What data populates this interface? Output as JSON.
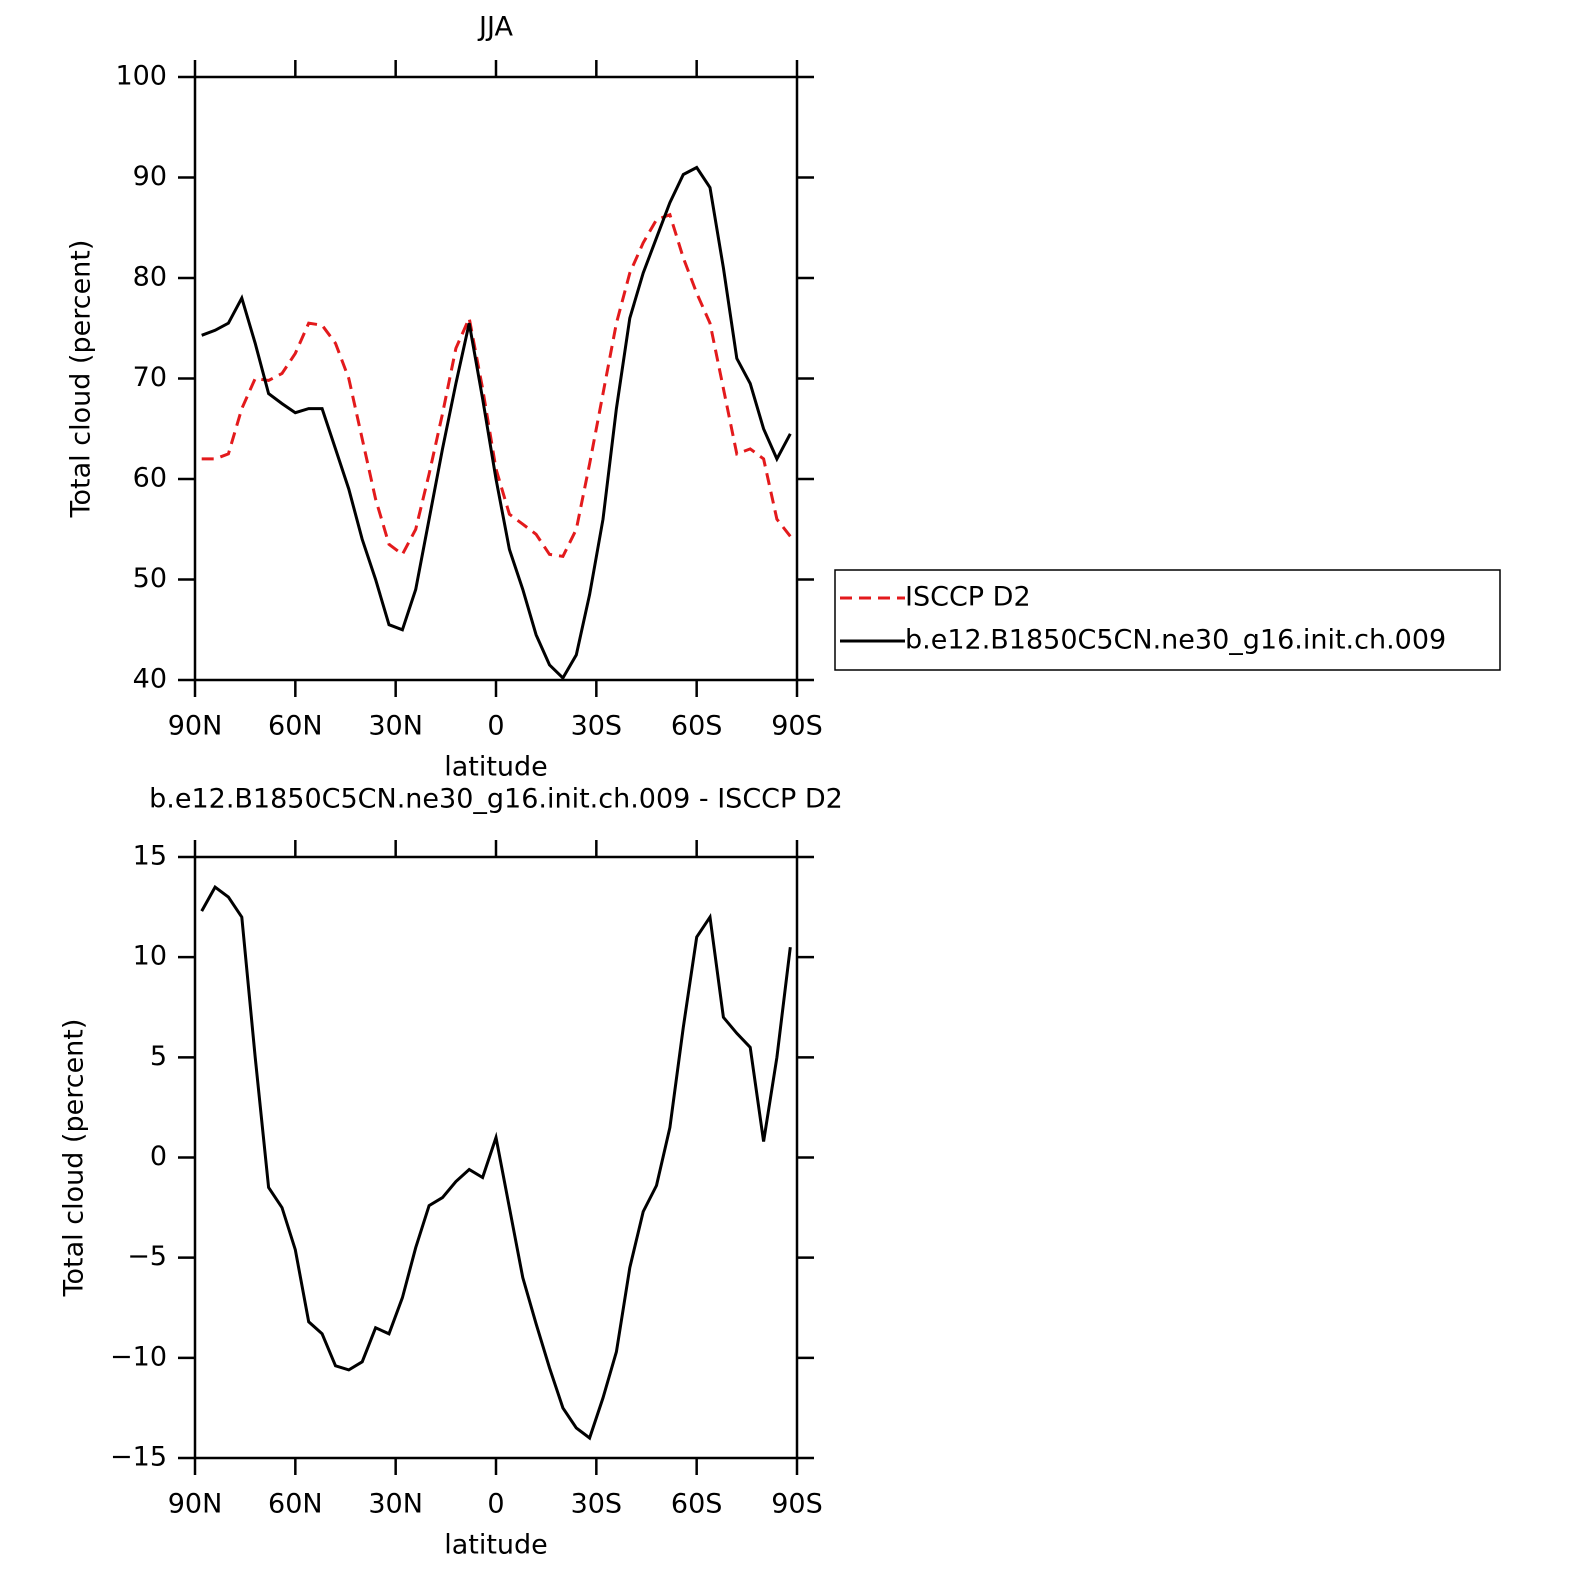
{
  "chart_data": [
    {
      "type": "line",
      "title": "JJA",
      "x_label": "latitude",
      "y_label": "Total cloud (percent)",
      "x": [
        88,
        84,
        80,
        76,
        72,
        68,
        64,
        60,
        56,
        52,
        48,
        44,
        40,
        36,
        32,
        28,
        24,
        20,
        16,
        12,
        8,
        4,
        0,
        -4,
        -8,
        -12,
        -16,
        -20,
        -24,
        -28,
        -32,
        -36,
        -40,
        -44,
        -48,
        -52,
        -56,
        -60,
        -64,
        -68,
        -72,
        -76,
        -80,
        -84,
        -88
      ],
      "xlim": [
        90,
        -90
      ],
      "xticks": [
        {
          "value": 90,
          "label": "90N"
        },
        {
          "value": 60,
          "label": "60N"
        },
        {
          "value": 30,
          "label": "30N"
        },
        0,
        {
          "value": -30,
          "label": "30S"
        },
        {
          "value": -60,
          "label": "60S"
        },
        {
          "value": -90,
          "label": "90S"
        }
      ],
      "ylim": [
        40,
        100
      ],
      "yticks": [
        40,
        50,
        60,
        70,
        80,
        90,
        100
      ],
      "legend": "outside-right",
      "series": [
        {
          "name": "ISCCP D2",
          "color": "#e31a1c",
          "dash": true,
          "values": [
            62,
            62,
            62.5,
            67,
            70,
            69.8,
            70.5,
            72.5,
            75.5,
            75.3,
            73.5,
            70,
            64,
            58,
            53.5,
            52.5,
            55,
            60.5,
            66.5,
            73,
            76,
            69,
            61,
            56.5,
            55.5,
            54.5,
            52.5,
            52.3,
            55,
            61.5,
            68.5,
            75.5,
            80.5,
            83.5,
            85.8,
            86.3,
            82,
            78.5,
            75.5,
            69,
            62.5,
            63,
            62,
            56,
            54.3
          ]
        },
        {
          "name": "b.e12.B1850C5CN.ne30_g16.init.ch.009",
          "color": "#000000",
          "dash": false,
          "values": [
            74.3,
            74.8,
            75.5,
            78,
            73.5,
            68.5,
            67.5,
            66.6,
            67,
            67,
            63,
            59,
            54,
            50,
            45.5,
            45,
            49,
            56,
            63,
            69.5,
            75.5,
            68,
            60,
            53,
            49,
            44.5,
            41.5,
            40.2,
            42.5,
            48.5,
            56,
            67,
            76,
            80.5,
            84,
            87.5,
            90.3,
            91,
            89,
            81,
            72,
            69.5,
            65,
            62,
            64.5
          ]
        }
      ]
    },
    {
      "type": "line",
      "title": "b.e12.B1850C5CN.ne30_g16.init.ch.009 - ISCCP D2",
      "x_label": "latitude",
      "y_label": "Total cloud (percent)",
      "x": [
        88,
        84,
        80,
        76,
        72,
        68,
        64,
        60,
        56,
        52,
        48,
        44,
        40,
        36,
        32,
        28,
        24,
        20,
        16,
        12,
        8,
        4,
        0,
        -4,
        -8,
        -12,
        -16,
        -20,
        -24,
        -28,
        -32,
        -36,
        -40,
        -44,
        -48,
        -52,
        -56,
        -60,
        -64,
        -68,
        -72,
        -76,
        -80,
        -84,
        -88
      ],
      "xlim": [
        90,
        -90
      ],
      "xticks": [
        {
          "value": 90,
          "label": "90N"
        },
        {
          "value": 60,
          "label": "60N"
        },
        {
          "value": 30,
          "label": "30N"
        },
        0,
        {
          "value": -30,
          "label": "30S"
        },
        {
          "value": -60,
          "label": "60S"
        },
        {
          "value": -90,
          "label": "90S"
        }
      ],
      "ylim": [
        -15,
        15
      ],
      "yticks": [
        {
          "value": -15,
          "label": "−15"
        },
        {
          "value": -10,
          "label": "−10"
        },
        {
          "value": -5,
          "label": "−5"
        },
        0,
        5,
        10,
        15
      ],
      "series": [
        {
          "color": "#000000",
          "dash": false,
          "values": [
            12.3,
            13.5,
            13,
            12,
            5,
            -1.5,
            -2.5,
            -4.6,
            -8.2,
            -8.8,
            -10.4,
            -10.6,
            -10.2,
            -8.5,
            -8.8,
            -7,
            -4.5,
            -2.4,
            -2,
            -1.2,
            -0.6,
            -1,
            1,
            -2.5,
            -6,
            -8.3,
            -10.5,
            -12.5,
            -13.5,
            -14,
            -12,
            -9.7,
            -5.5,
            -2.7,
            -1.4,
            1.5,
            6.5,
            11,
            12,
            7,
            6.2,
            5.5,
            0.8,
            5,
            10.5
          ]
        }
      ]
    }
  ]
}
